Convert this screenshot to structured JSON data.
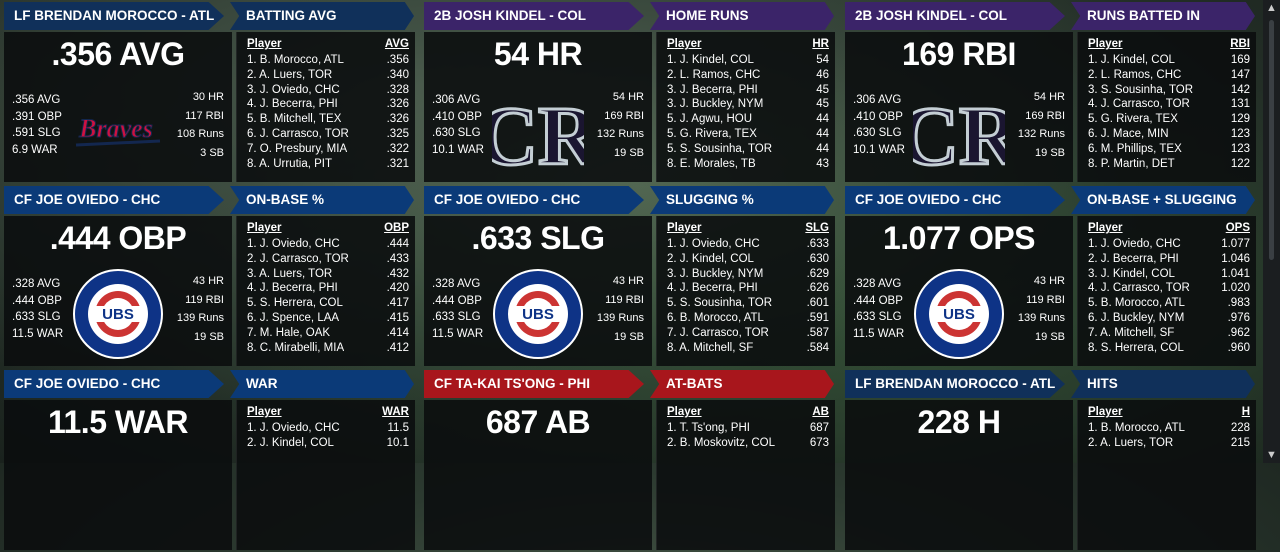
{
  "colors": {
    "atl": "#10305a",
    "chc": "#0b3a78",
    "col": "#3b2469",
    "phi": "#a8161c"
  },
  "cards": [
    {
      "leader": "LF BRENDAN MOROCCO - ATL",
      "team": "atl",
      "big": ".356 AVG",
      "left": [
        ".356 AVG",
        ".391 OBP",
        ".591 SLG",
        "6.9 WAR"
      ],
      "right": [
        "30 HR",
        "117 RBI",
        "108 Runs",
        "3 SB"
      ],
      "logo": "braves-logo",
      "logo_text": "Braves",
      "cat": "BATTING AVG",
      "col": "AVG",
      "rows": [
        [
          "1. B. Morocco, ATL",
          ".356"
        ],
        [
          "2. A. Luers, TOR",
          ".340"
        ],
        [
          "3. J. Oviedo, CHC",
          ".328"
        ],
        [
          "4. J. Becerra, PHI",
          ".326"
        ],
        [
          "5. B. Mitchell, TEX",
          ".326"
        ],
        [
          "6. J. Carrasco, TOR",
          ".325"
        ],
        [
          "7. O. Presbury, MIA",
          ".322"
        ],
        [
          "8. A. Urrutia, PIT",
          ".321"
        ]
      ]
    },
    {
      "leader": "2B JOSH KINDEL - COL",
      "team": "col",
      "big": "54 HR",
      "left": [
        ".306 AVG",
        ".410 OBP",
        ".630 SLG",
        "10.1 WAR"
      ],
      "right": [
        "54 HR",
        "169 RBI",
        "132 Runs",
        "19 SB"
      ],
      "logo": "rockies-logo",
      "logo_text": "CR",
      "cat": "HOME RUNS",
      "col": "HR",
      "rows": [
        [
          "1. J. Kindel, COL",
          "54"
        ],
        [
          "2. L. Ramos, CHC",
          "46"
        ],
        [
          "3. J. Becerra, PHI",
          "45"
        ],
        [
          "3. J. Buckley, NYM",
          "45"
        ],
        [
          "5. J. Agwu, HOU",
          "44"
        ],
        [
          "5. G. Rivera, TEX",
          "44"
        ],
        [
          "5. S. Sousinha, TOR",
          "44"
        ],
        [
          "8. E. Morales, TB",
          "43"
        ]
      ]
    },
    {
      "leader": "2B JOSH KINDEL - COL",
      "team": "col",
      "big": "169 RBI",
      "left": [
        ".306 AVG",
        ".410 OBP",
        ".630 SLG",
        "10.1 WAR"
      ],
      "right": [
        "54 HR",
        "169 RBI",
        "132 Runs",
        "19 SB"
      ],
      "logo": "rockies-logo",
      "logo_text": "CR",
      "cat": "RUNS BATTED IN",
      "col": "RBI",
      "rows": [
        [
          "1. J. Kindel, COL",
          "169"
        ],
        [
          "2. L. Ramos, CHC",
          "147"
        ],
        [
          "3. S. Sousinha, TOR",
          "142"
        ],
        [
          "4. J. Carrasco, TOR",
          "131"
        ],
        [
          "5. G. Rivera, TEX",
          "129"
        ],
        [
          "6. J. Mace, MIN",
          "123"
        ],
        [
          "6. M. Phillips, TEX",
          "123"
        ],
        [
          "8. P. Martin, DET",
          "122"
        ]
      ]
    },
    {
      "leader": "CF JOE OVIEDO - CHC",
      "team": "chc",
      "big": ".444 OBP",
      "left": [
        ".328 AVG",
        ".444 OBP",
        ".633 SLG",
        "11.5 WAR"
      ],
      "right": [
        "43 HR",
        "119 RBI",
        "139 Runs",
        "19 SB"
      ],
      "logo": "cubs-logo",
      "logo_text": "UBS",
      "cat": "ON-BASE %",
      "col": "OBP",
      "rows": [
        [
          "1. J. Oviedo, CHC",
          ".444"
        ],
        [
          "2. J. Carrasco, TOR",
          ".433"
        ],
        [
          "3. A. Luers, TOR",
          ".432"
        ],
        [
          "4. J. Becerra, PHI",
          ".420"
        ],
        [
          "5. S. Herrera, COL",
          ".417"
        ],
        [
          "6. J. Spence, LAA",
          ".415"
        ],
        [
          "7. M. Hale, OAK",
          ".414"
        ],
        [
          "8. C. Mirabelli, MIA",
          ".412"
        ]
      ]
    },
    {
      "leader": "CF JOE OVIEDO - CHC",
      "team": "chc",
      "big": ".633 SLG",
      "left": [
        ".328 AVG",
        ".444 OBP",
        ".633 SLG",
        "11.5 WAR"
      ],
      "right": [
        "43 HR",
        "119 RBI",
        "139 Runs",
        "19 SB"
      ],
      "logo": "cubs-logo",
      "logo_text": "UBS",
      "cat": "SLUGGING %",
      "col": "SLG",
      "rows": [
        [
          "1. J. Oviedo, CHC",
          ".633"
        ],
        [
          "2. J. Kindel, COL",
          ".630"
        ],
        [
          "3. J. Buckley, NYM",
          ".629"
        ],
        [
          "4. J. Becerra, PHI",
          ".626"
        ],
        [
          "5. S. Sousinha, TOR",
          ".601"
        ],
        [
          "6. B. Morocco, ATL",
          ".591"
        ],
        [
          "7. J. Carrasco, TOR",
          ".587"
        ],
        [
          "8. A. Mitchell, SF",
          ".584"
        ]
      ]
    },
    {
      "leader": "CF JOE OVIEDO - CHC",
      "team": "chc",
      "big": "1.077 OPS",
      "left": [
        ".328 AVG",
        ".444 OBP",
        ".633 SLG",
        "11.5 WAR"
      ],
      "right": [
        "43 HR",
        "119 RBI",
        "139 Runs",
        "19 SB"
      ],
      "logo": "cubs-logo",
      "logo_text": "UBS",
      "cat": "ON-BASE + SLUGGING",
      "col": "OPS",
      "rows": [
        [
          "1. J. Oviedo, CHC",
          "1.077"
        ],
        [
          "2. J. Becerra, PHI",
          "1.046"
        ],
        [
          "3. J. Kindel, COL",
          "1.041"
        ],
        [
          "4. J. Carrasco, TOR",
          "1.020"
        ],
        [
          "5. B. Morocco, ATL",
          ".983"
        ],
        [
          "6. J. Buckley, NYM",
          ".976"
        ],
        [
          "7. A. Mitchell, SF",
          ".962"
        ],
        [
          "8. S. Herrera, COL",
          ".960"
        ]
      ]
    },
    {
      "leader": "CF JOE OVIEDO - CHC",
      "team": "chc",
      "big": "11.5 WAR",
      "left": [],
      "right": [],
      "logo": "",
      "logo_text": "",
      "cat": "WAR",
      "col": "WAR",
      "rows": [
        [
          "1. J. Oviedo, CHC",
          "11.5"
        ],
        [
          "2. J. Kindel, COL",
          "10.1"
        ]
      ]
    },
    {
      "leader": "CF TA-KAI TS'ONG - PHI",
      "team": "phi",
      "big": "687 AB",
      "left": [],
      "right": [],
      "logo": "",
      "logo_text": "",
      "cat": "AT-BATS",
      "col": "AB",
      "rows": [
        [
          "1. T. Ts'ong, PHI",
          "687"
        ],
        [
          "2. B. Moskovitz, COL",
          "673"
        ]
      ]
    },
    {
      "leader": "LF BRENDAN MOROCCO - ATL",
      "team": "atl",
      "big": "228 H",
      "left": [],
      "right": [],
      "logo": "",
      "logo_text": "",
      "cat": "HITS",
      "col": "H",
      "rows": [
        [
          "1. B. Morocco, ATL",
          "228"
        ],
        [
          "2. A. Luers, TOR",
          "215"
        ]
      ]
    }
  ],
  "labels": {
    "player_col": "Player"
  },
  "scrollbar": {
    "up": "▲",
    "down": "▼"
  }
}
